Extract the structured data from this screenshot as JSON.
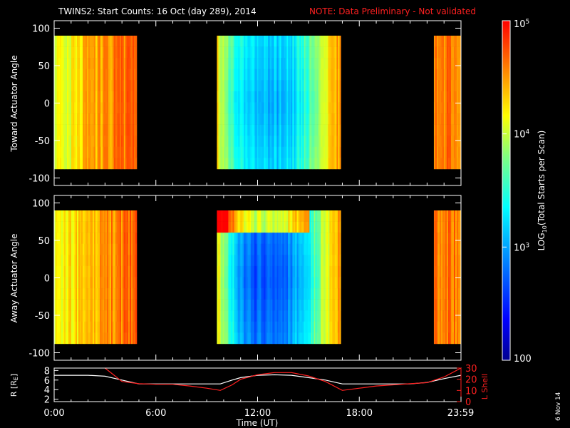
{
  "title": {
    "main": "TWINS2: Start Counts: 16 Oct (day 289), 2014",
    "note": "NOTE: Data Preliminary - Not validated",
    "note_color": "#ff2020"
  },
  "date_stamp": "6 Nov 14",
  "colorbar": {
    "label_prefix": "LOG",
    "label_sub": "10",
    "label_suffix": "(Total Starts per Scan)",
    "scale": "log",
    "range": [
      100,
      100000
    ],
    "ticks": [
      {
        "value": 100,
        "base": "100",
        "exp": ""
      },
      {
        "value": 1000,
        "base": "10",
        "exp": "3"
      },
      {
        "value": 10000,
        "base": "10",
        "exp": "4"
      },
      {
        "value": 100000,
        "base": "10",
        "exp": "5"
      }
    ],
    "colormap": "rainbow (blue-cyan-green-yellow-red)"
  },
  "chart_data": [
    {
      "type": "heatmap",
      "name": "toward",
      "ylabel": "Toward Actuator Angle",
      "ylim": [
        -110,
        110
      ],
      "yticks": [
        100,
        50,
        0,
        -50,
        -100
      ],
      "angle_range": [
        -88,
        90
      ],
      "data_intervals_hr": [
        [
          0.0,
          4.85
        ],
        [
          9.6,
          16.85
        ],
        [
          22.4,
          23.98
        ]
      ],
      "level_profile": [
        {
          "hr": 0.0,
          "log": 4.15
        },
        {
          "hr": 1.0,
          "log": 4.15
        },
        {
          "hr": 2.0,
          "log": 4.4
        },
        {
          "hr": 3.0,
          "log": 4.5
        },
        {
          "hr": 4.0,
          "log": 4.6
        },
        {
          "hr": 4.85,
          "log": 4.7
        },
        {
          "hr": 9.6,
          "log": 4.2
        },
        {
          "hr": 9.9,
          "log": 3.95
        },
        {
          "hr": 10.3,
          "log": 3.6
        },
        {
          "hr": 11.0,
          "log": 3.25
        },
        {
          "hr": 12.0,
          "log": 3.05
        },
        {
          "hr": 13.0,
          "log": 3.05
        },
        {
          "hr": 14.0,
          "log": 3.15
        },
        {
          "hr": 15.0,
          "log": 3.5
        },
        {
          "hr": 15.5,
          "log": 3.8
        },
        {
          "hr": 16.0,
          "log": 4.2
        },
        {
          "hr": 16.85,
          "log": 4.5
        },
        {
          "hr": 22.4,
          "log": 4.6
        },
        {
          "hr": 23.98,
          "log": 4.6
        }
      ]
    },
    {
      "type": "heatmap",
      "name": "away",
      "ylabel": "Away Actuator Angle",
      "ylim": [
        -110,
        110
      ],
      "yticks": [
        100,
        50,
        0,
        -50,
        -100
      ],
      "angle_range": [
        -88,
        90
      ],
      "data_intervals_hr": [
        [
          0.0,
          4.85
        ],
        [
          9.6,
          16.85
        ],
        [
          22.4,
          23.98
        ]
      ],
      "level_profile": [
        {
          "hr": 0.0,
          "log": 4.15
        },
        {
          "hr": 1.0,
          "log": 4.2
        },
        {
          "hr": 2.0,
          "log": 4.4
        },
        {
          "hr": 3.0,
          "log": 4.5
        },
        {
          "hr": 4.0,
          "log": 4.6
        },
        {
          "hr": 4.85,
          "log": 4.7
        },
        {
          "hr": 9.6,
          "log": 4.2
        },
        {
          "hr": 9.9,
          "log": 3.9
        },
        {
          "hr": 10.3,
          "log": 3.4
        },
        {
          "hr": 11.0,
          "log": 2.9
        },
        {
          "hr": 12.0,
          "log": 2.65
        },
        {
          "hr": 13.0,
          "log": 2.7
        },
        {
          "hr": 14.0,
          "log": 2.9
        },
        {
          "hr": 15.0,
          "log": 3.3
        },
        {
          "hr": 15.5,
          "log": 3.7
        },
        {
          "hr": 16.0,
          "log": 4.1
        },
        {
          "hr": 16.85,
          "log": 4.5
        },
        {
          "hr": 22.4,
          "log": 4.6
        },
        {
          "hr": 23.98,
          "log": 4.6
        }
      ]
    },
    {
      "type": "line",
      "name": "orbit",
      "xlabel": "Time (UT)",
      "xlim": [
        0,
        24
      ],
      "xticks": [
        "0:00",
        "6:00",
        "12:00",
        "18:00",
        "23:59"
      ],
      "xtick_values": [
        0,
        6,
        12,
        18,
        23.98
      ],
      "ylabel_left": "R [R",
      "ylabel_left_sub": "E",
      "ylabel_left_end": "]",
      "ylim_left": [
        1.5,
        8.5
      ],
      "yticks_left": [
        2,
        4,
        6,
        8
      ],
      "ylabel_right": "L Shell",
      "ylim_right": [
        0,
        30
      ],
      "yticks_right": [
        0,
        10,
        20,
        30
      ],
      "series": [
        {
          "name": "R",
          "axis": "left",
          "color": "#ffffff",
          "x": [
            0,
            1,
            2,
            3,
            4,
            5,
            6,
            7,
            8,
            9,
            9.8,
            10.5,
            11,
            12,
            13,
            14,
            15,
            16,
            17,
            18,
            19,
            20,
            21,
            22,
            23,
            24
          ],
          "y": [
            7.0,
            7.0,
            7.0,
            6.8,
            6.0,
            5.2,
            5.2,
            5.2,
            5.2,
            5.2,
            5.2,
            6.0,
            6.5,
            7.0,
            7.1,
            7.0,
            6.5,
            6.0,
            5.2,
            5.2,
            5.2,
            5.2,
            5.2,
            5.5,
            6.3,
            7.0
          ]
        },
        {
          "name": "L Shell",
          "axis": "right",
          "color": "#ff2020",
          "x": [
            3.0,
            3.5,
            4.0,
            5.0,
            6.0,
            7.0,
            8.0,
            9.0,
            9.8,
            10.5,
            11.0,
            12.0,
            13.0,
            14.0,
            15.0,
            16.0,
            17.0,
            18.0,
            19.0,
            20.0,
            21.0,
            22.0,
            23.0,
            24.0
          ],
          "y": [
            30,
            24,
            18,
            16,
            15.5,
            15.5,
            14,
            12,
            10,
            15,
            20,
            24,
            26,
            26,
            23,
            18,
            10,
            12,
            14,
            15,
            16,
            17,
            22,
            30
          ]
        }
      ]
    }
  ]
}
